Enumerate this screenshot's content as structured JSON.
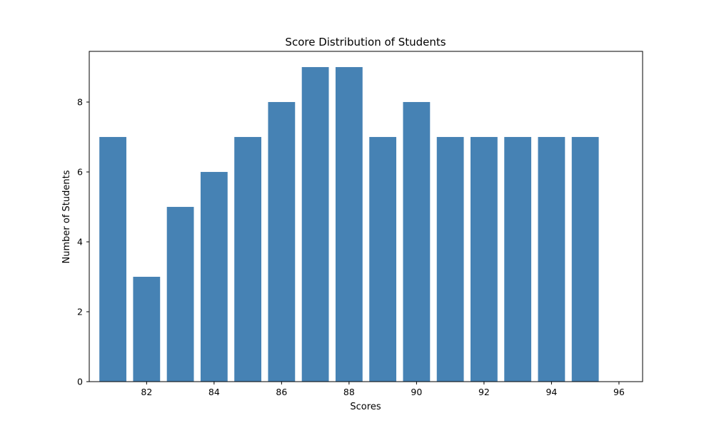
{
  "chart_data": {
    "type": "bar",
    "title": "Score Distribution of Students",
    "xlabel": "Scores",
    "ylabel": "Number of Students",
    "x": [
      81,
      82,
      83,
      84,
      85,
      86,
      87,
      88,
      89,
      90,
      91,
      92,
      93,
      94,
      95,
      96
    ],
    "values": [
      7,
      3,
      5,
      6,
      7,
      8,
      9,
      9,
      7,
      8,
      7,
      7,
      7,
      7,
      7,
      0
    ],
    "xticks": [
      82,
      84,
      86,
      88,
      90,
      92,
      94,
      96
    ],
    "yticks": [
      0,
      2,
      4,
      6,
      8
    ],
    "xlim": [
      80.3,
      96.7
    ],
    "ylim": [
      0,
      9.45
    ],
    "grid": false,
    "bar_color": "#4682b4"
  }
}
